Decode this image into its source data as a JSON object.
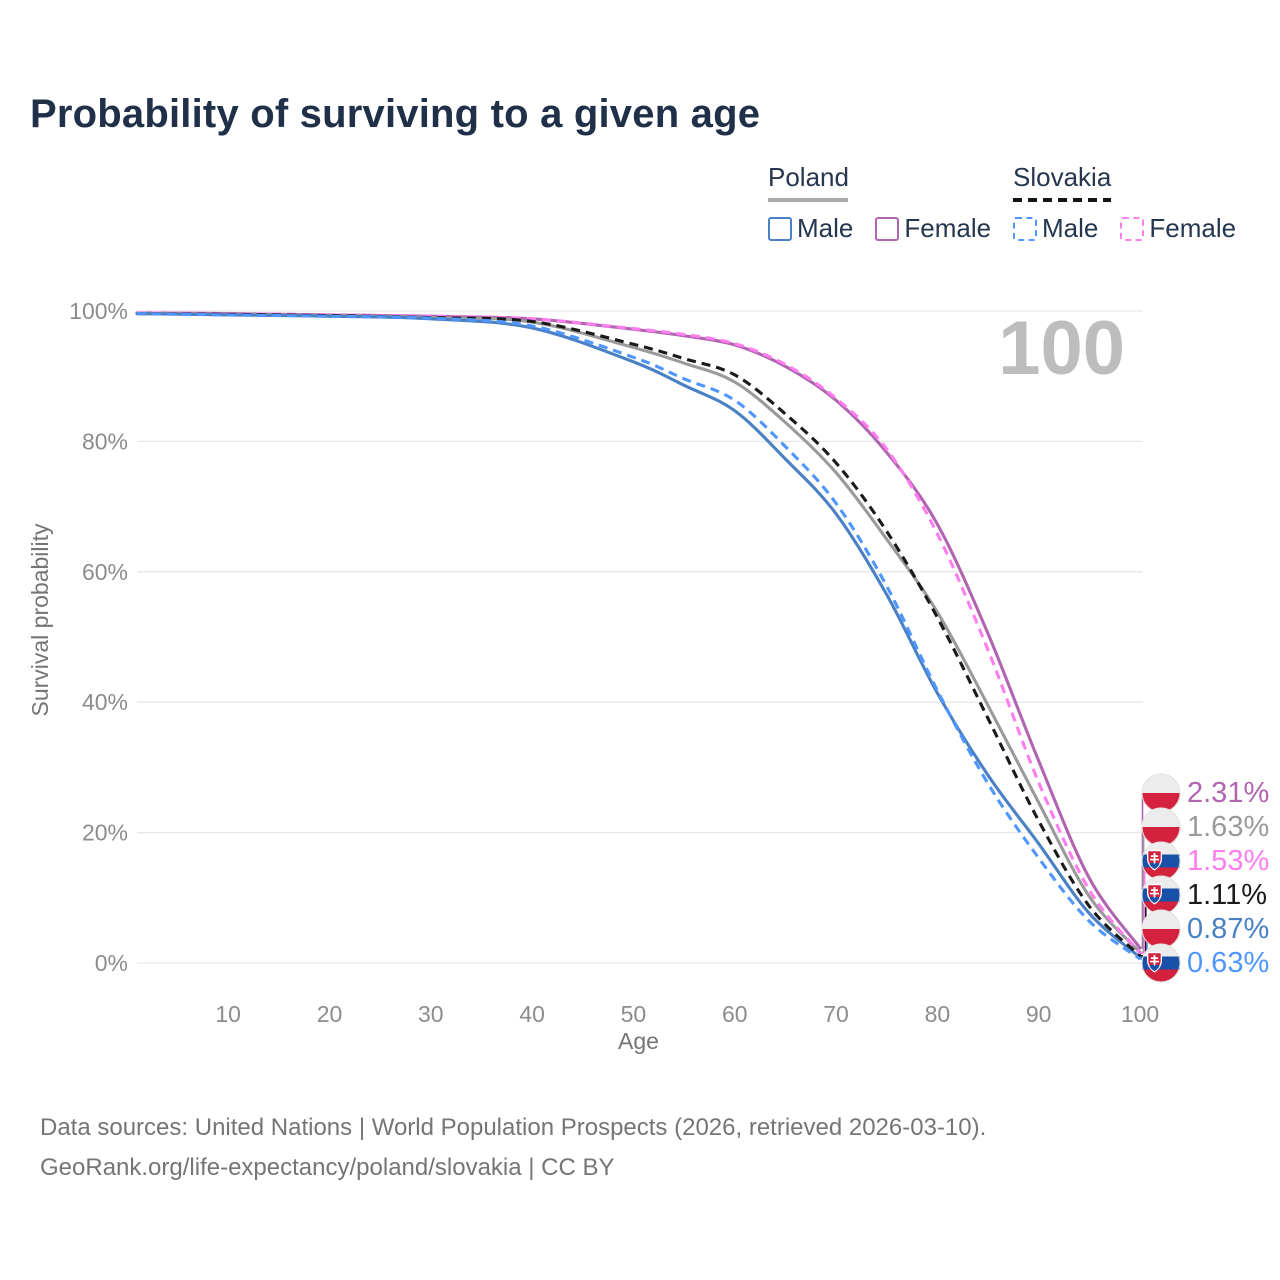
{
  "page": {
    "title": "Probability of surviving to a given age",
    "watermark": "100",
    "footer_line1": "Data sources: United Nations | World Population Prospects (2026, retrieved 2026-03-10).",
    "footer_line2": "GeoRank.org/life-expectancy/poland/slovakia | CC BY"
  },
  "legend": {
    "poland": {
      "label": "Poland",
      "male": "Male",
      "female": "Female"
    },
    "slovakia": {
      "label": "Slovakia",
      "male": "Male",
      "female": "Female"
    }
  },
  "colors": {
    "poland_male": "#4a80c4",
    "poland_female": "#b165b1",
    "poland_all": "#9a9a9a",
    "slovakia_male": "#4f96ff",
    "slovakia_female": "#ff7dee",
    "slovakia_all": "#1a1a1a",
    "grid": "#e7e7e7",
    "tick_text": "#8c8c8c",
    "axis_title": "#757575",
    "watermark": "#bdbdbd"
  },
  "chart_data": {
    "type": "line",
    "title": "Probability of surviving to a given age",
    "xlabel": "Age",
    "ylabel": "Survival probability",
    "xlim": [
      1,
      100
    ],
    "ylim": [
      0,
      100
    ],
    "x_ticks": [
      10,
      20,
      30,
      40,
      50,
      60,
      70,
      80,
      90,
      100
    ],
    "y_ticks": [
      0,
      20,
      40,
      60,
      80,
      100
    ],
    "y_tick_suffix": "%",
    "grid": true,
    "legend_position": "top-right",
    "x": [
      1,
      10,
      20,
      30,
      40,
      50,
      55,
      60,
      65,
      70,
      75,
      80,
      85,
      90,
      95,
      100
    ],
    "series": [
      {
        "name": "Poland Female",
        "country": "poland",
        "sex": "female",
        "color": "#b165b1",
        "dashed": false,
        "values": [
          99.7,
          99.6,
          99.4,
          99.2,
          98.8,
          97.2,
          96.2,
          94.8,
          91.5,
          86.3,
          78.3,
          67.3,
          50.5,
          31.0,
          13.0,
          2.31
        ],
        "end_label": "2.31%"
      },
      {
        "name": "Poland",
        "country": "poland",
        "sex": "all",
        "color": "#9a9a9a",
        "dashed": false,
        "values": [
          99.6,
          99.5,
          99.3,
          99.0,
          98.3,
          94.4,
          92.0,
          89.1,
          82.9,
          75.2,
          65.0,
          53.8,
          39.5,
          24.6,
          10.2,
          1.63
        ],
        "end_label": "1.63%"
      },
      {
        "name": "Poland Male",
        "country": "poland",
        "sex": "male",
        "color": "#4a80c4",
        "dashed": false,
        "values": [
          99.6,
          99.4,
          99.2,
          98.8,
          97.4,
          92.2,
          88.6,
          84.7,
          77.3,
          68.9,
          56.5,
          41.4,
          28.8,
          18.3,
          7.6,
          0.87
        ],
        "end_label": "0.87%"
      },
      {
        "name": "Slovakia Female",
        "country": "slovakia",
        "sex": "female",
        "color": "#ff7dee",
        "dashed": true,
        "values": [
          99.7,
          99.6,
          99.4,
          99.2,
          98.8,
          97.3,
          96.4,
          95.0,
          91.8,
          86.6,
          78.8,
          65.8,
          48.0,
          27.7,
          11.2,
          1.53
        ],
        "end_label": "1.53%"
      },
      {
        "name": "Slovakia",
        "country": "slovakia",
        "sex": "all",
        "color": "#1a1a1a",
        "dashed": true,
        "values": [
          99.6,
          99.5,
          99.3,
          99.0,
          98.4,
          94.9,
          92.7,
          90.2,
          84.2,
          76.7,
          66.2,
          53.0,
          37.5,
          21.8,
          8.7,
          1.11
        ],
        "end_label": "1.11%"
      },
      {
        "name": "Slovakia Male",
        "country": "slovakia",
        "sex": "male",
        "color": "#4f96ff",
        "dashed": true,
        "values": [
          99.6,
          99.4,
          99.2,
          98.9,
          97.7,
          92.9,
          89.6,
          86.3,
          79.2,
          70.5,
          57.8,
          41.8,
          27.5,
          16.1,
          6.4,
          0.63
        ],
        "end_label": "0.63%"
      }
    ],
    "end_labels_order": [
      "Poland Female",
      "Poland",
      "Slovakia Female",
      "Slovakia",
      "Poland Male",
      "Slovakia Male"
    ]
  }
}
